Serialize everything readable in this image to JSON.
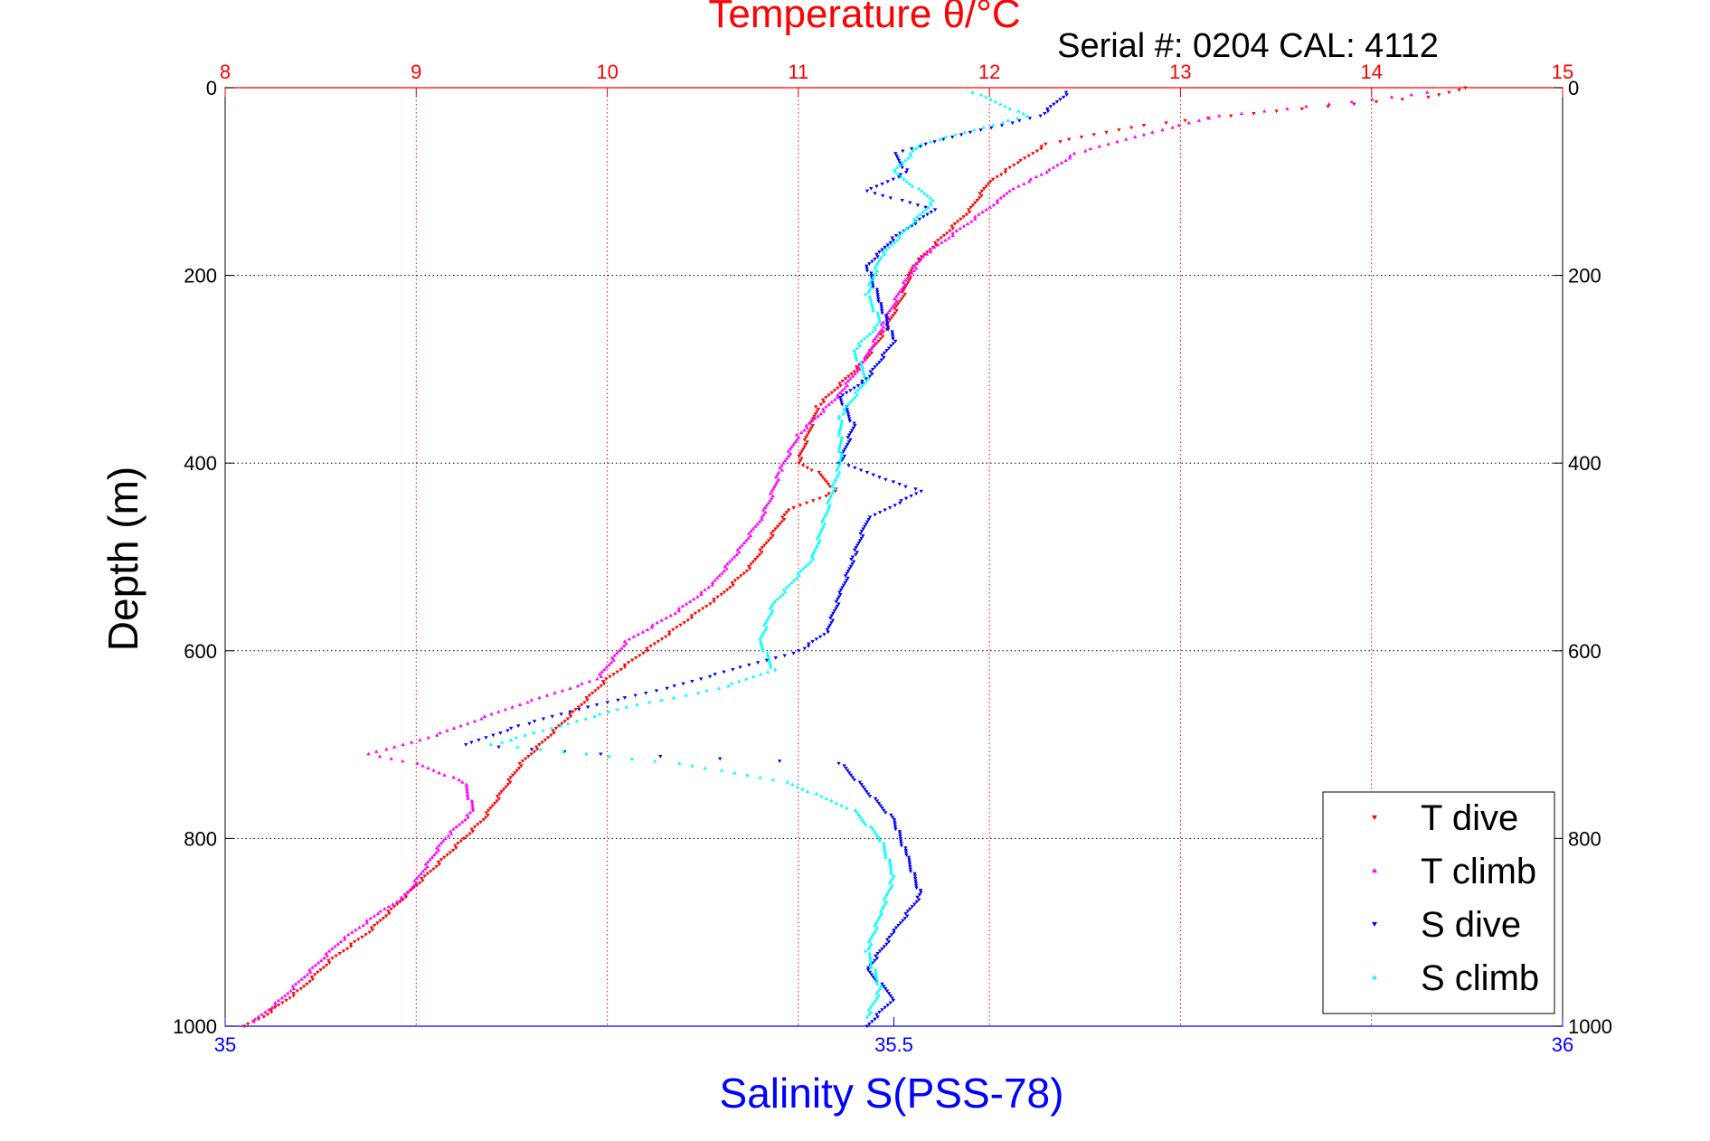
{
  "chart_data": {
    "type": "scatter",
    "title": "Temperature θ/°C",
    "subtitle": "Serial #: 0204  CAL: 4112",
    "xlabel_top": "Temperature θ/°C",
    "xlabel_bottom": "Salinity S(PSS-78)",
    "ylabel": "Depth (m)",
    "temperature_axis": {
      "range": [
        8,
        15
      ],
      "ticks": [
        "8",
        "9",
        "10",
        "11",
        "12",
        "13",
        "14",
        "15"
      ]
    },
    "salinity_axis": {
      "range": [
        35,
        36
      ],
      "ticks": [
        "35",
        "35.5",
        "36"
      ]
    },
    "depth_axis": {
      "range": [
        0,
        1000
      ],
      "reversed": true,
      "ticks": [
        "0",
        "200",
        "400",
        "600",
        "800",
        "1000"
      ]
    },
    "grid": true,
    "legend_position": "bottom-right",
    "colors": {
      "t_dive": "#ff0000",
      "t_climb": "#ff00ff",
      "s_dive": "#0000ff",
      "s_climb": "#00ffff",
      "temp_axis": "#ff0000",
      "sal_axis": "#0000ff"
    },
    "series": [
      {
        "name": "T dive",
        "axis": "temperature",
        "marker": "down-triangle",
        "points": [
          [
            14.5,
            0
          ],
          [
            14.3,
            10
          ],
          [
            13.5,
            25
          ],
          [
            12.8,
            40
          ],
          [
            12.3,
            60
          ],
          [
            12.15,
            80
          ],
          [
            12.0,
            100
          ],
          [
            11.9,
            130
          ],
          [
            11.75,
            160
          ],
          [
            11.6,
            190
          ],
          [
            11.55,
            220
          ],
          [
            11.45,
            260
          ],
          [
            11.35,
            290
          ],
          [
            11.2,
            320
          ],
          [
            11.1,
            340
          ],
          [
            11.05,
            370
          ],
          [
            11.0,
            400
          ],
          [
            11.1,
            410
          ],
          [
            11.2,
            430
          ],
          [
            10.95,
            450
          ],
          [
            10.85,
            480
          ],
          [
            10.75,
            510
          ],
          [
            10.6,
            540
          ],
          [
            10.4,
            570
          ],
          [
            10.2,
            600
          ],
          [
            10.0,
            630
          ],
          [
            9.85,
            660
          ],
          [
            9.7,
            690
          ],
          [
            9.55,
            720
          ],
          [
            9.45,
            750
          ],
          [
            9.35,
            780
          ],
          [
            9.2,
            810
          ],
          [
            9.05,
            840
          ],
          [
            8.9,
            870
          ],
          [
            8.75,
            900
          ],
          [
            8.55,
            930
          ],
          [
            8.4,
            960
          ],
          [
            8.2,
            990
          ],
          [
            8.1,
            1000
          ]
        ]
      },
      {
        "name": "T climb",
        "axis": "temperature",
        "marker": "up-triangle",
        "points": [
          [
            14.3,
            5
          ],
          [
            13.9,
            15
          ],
          [
            13.2,
            30
          ],
          [
            12.8,
            50
          ],
          [
            12.45,
            70
          ],
          [
            12.3,
            90
          ],
          [
            12.1,
            110
          ],
          [
            12.05,
            120
          ],
          [
            11.85,
            150
          ],
          [
            11.65,
            180
          ],
          [
            11.55,
            210
          ],
          [
            11.45,
            250
          ],
          [
            11.35,
            290
          ],
          [
            11.2,
            330
          ],
          [
            11.0,
            370
          ],
          [
            10.9,
            410
          ],
          [
            10.85,
            440
          ],
          [
            10.8,
            460
          ],
          [
            10.7,
            490
          ],
          [
            10.55,
            530
          ],
          [
            10.35,
            560
          ],
          [
            10.1,
            590
          ],
          [
            9.95,
            630
          ],
          [
            9.5,
            660
          ],
          [
            9.1,
            690
          ],
          [
            8.85,
            705
          ],
          [
            8.75,
            710
          ],
          [
            9.0,
            720
          ],
          [
            9.25,
            740
          ],
          [
            9.3,
            770
          ],
          [
            9.15,
            800
          ],
          [
            9.05,
            830
          ],
          [
            8.95,
            860
          ],
          [
            8.8,
            880
          ],
          [
            8.6,
            910
          ],
          [
            8.45,
            940
          ],
          [
            8.3,
            970
          ],
          [
            8.15,
            995
          ]
        ]
      },
      {
        "name": "S dive",
        "axis": "salinity",
        "marker": "down-triangle",
        "points": [
          [
            35.63,
            5
          ],
          [
            35.61,
            30
          ],
          [
            35.55,
            50
          ],
          [
            35.5,
            70
          ],
          [
            35.51,
            90
          ],
          [
            35.48,
            110
          ],
          [
            35.53,
            130
          ],
          [
            35.5,
            160
          ],
          [
            35.48,
            190
          ],
          [
            35.49,
            230
          ],
          [
            35.5,
            270
          ],
          [
            35.48,
            310
          ],
          [
            35.46,
            330
          ],
          [
            35.47,
            360
          ],
          [
            35.46,
            400
          ],
          [
            35.5,
            420
          ],
          [
            35.52,
            430
          ],
          [
            35.48,
            460
          ],
          [
            35.47,
            500
          ],
          [
            35.46,
            540
          ],
          [
            35.45,
            580
          ],
          [
            35.43,
            600
          ],
          [
            35.38,
            620
          ],
          [
            35.33,
            640
          ],
          [
            35.27,
            660
          ],
          [
            35.22,
            680
          ],
          [
            35.18,
            700
          ],
          [
            35.28,
            710
          ],
          [
            35.46,
            720
          ],
          [
            35.48,
            750
          ],
          [
            35.5,
            780
          ],
          [
            35.51,
            820
          ],
          [
            35.52,
            860
          ],
          [
            35.5,
            900
          ],
          [
            35.48,
            940
          ],
          [
            35.5,
            970
          ],
          [
            35.48,
            1000
          ]
        ]
      },
      {
        "name": "S climb",
        "axis": "salinity",
        "marker": "up-triangle",
        "points": [
          [
            35.56,
            5
          ],
          [
            35.6,
            30
          ],
          [
            35.52,
            60
          ],
          [
            35.5,
            90
          ],
          [
            35.53,
            120
          ],
          [
            35.51,
            150
          ],
          [
            35.49,
            180
          ],
          [
            35.48,
            220
          ],
          [
            35.49,
            250
          ],
          [
            35.47,
            280
          ],
          [
            35.48,
            310
          ],
          [
            35.46,
            350
          ],
          [
            35.46,
            400
          ],
          [
            35.45,
            450
          ],
          [
            35.44,
            500
          ],
          [
            35.41,
            550
          ],
          [
            35.4,
            590
          ],
          [
            35.41,
            620
          ],
          [
            35.37,
            640
          ],
          [
            35.3,
            660
          ],
          [
            35.25,
            680
          ],
          [
            35.2,
            700
          ],
          [
            35.34,
            720
          ],
          [
            35.42,
            740
          ],
          [
            35.47,
            770
          ],
          [
            35.49,
            800
          ],
          [
            35.5,
            840
          ],
          [
            35.49,
            880
          ],
          [
            35.48,
            920
          ],
          [
            35.49,
            960
          ],
          [
            35.48,
            990
          ]
        ]
      }
    ]
  }
}
